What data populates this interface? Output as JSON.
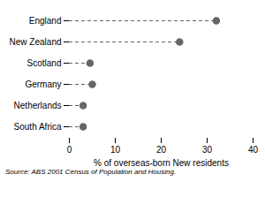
{
  "chart_data": {
    "type": "lollipop",
    "orientation": "horizontal",
    "categories": [
      "England",
      "New Zealand",
      "Scotland",
      "Germany",
      "Netherlands",
      "South Africa"
    ],
    "values": [
      32.0,
      24.0,
      4.5,
      5.0,
      3.0,
      3.0
    ],
    "color": "#666666",
    "line_style": "dashed",
    "marker": "circle",
    "xlabel": "% of overseas-born New residents",
    "xlim": [
      0,
      40
    ],
    "xticks": [
      0,
      10,
      20,
      30,
      40
    ],
    "grid": false,
    "caption": "Source: ABS 2001 Census of Population and Housing."
  }
}
